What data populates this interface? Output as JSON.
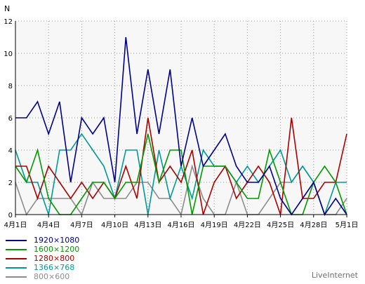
{
  "chart_data": {
    "type": "line",
    "title": "",
    "xlabel": "",
    "ylabel": "N",
    "ylim": [
      0,
      12
    ],
    "y_ticks": [
      "0",
      "2",
      "4",
      "6",
      "8",
      "10",
      "12"
    ],
    "grid": true,
    "legend_position": "bottom-left",
    "x_categories": [
      "4月1日",
      "4月2日",
      "4月3日",
      "4月4日",
      "4月5日",
      "4月6日",
      "4月7日",
      "4月8日",
      "4月9日",
      "4月10日",
      "4月11日",
      "4月12日",
      "4月13日",
      "4月14日",
      "4月15日",
      "4月16日",
      "4月17日",
      "4月18日",
      "4月19日",
      "4月20日",
      "4月21日",
      "4月22日",
      "4月23日",
      "4月24日",
      "4月25日",
      "4月26日",
      "4月27日",
      "4月28日",
      "4月29日",
      "4月30日",
      "5月1日"
    ],
    "x_ticks": [
      {
        "index": 0,
        "label": "4月1日"
      },
      {
        "index": 3,
        "label": "4月4日"
      },
      {
        "index": 6,
        "label": "4月7日"
      },
      {
        "index": 9,
        "label": "4月10日"
      },
      {
        "index": 12,
        "label": "4月13日"
      },
      {
        "index": 15,
        "label": "4月16日"
      },
      {
        "index": 18,
        "label": "4月19日"
      },
      {
        "index": 21,
        "label": "4月22日"
      },
      {
        "index": 24,
        "label": "4月25日"
      },
      {
        "index": 27,
        "label": "4月28日"
      },
      {
        "index": 30,
        "label": "5月1日"
      }
    ],
    "series": [
      {
        "name": "800×600",
        "color": "#8c8c8c",
        "values": [
          2,
          0,
          1,
          1,
          1,
          1,
          0,
          2,
          1,
          1,
          1,
          2,
          2,
          1,
          1,
          0,
          3,
          1,
          0,
          0,
          2,
          0,
          0,
          1,
          2,
          2,
          3,
          2,
          0,
          0,
          1
        ]
      },
      {
        "name": "1366×768",
        "color": "#009999",
        "values": [
          4,
          2,
          2,
          0,
          4,
          4,
          5,
          4,
          3,
          1,
          4,
          4,
          0,
          4,
          1,
          3,
          1,
          4,
          3,
          3,
          2,
          3,
          2,
          3,
          4,
          2,
          3,
          2,
          0,
          2,
          2
        ]
      },
      {
        "name": "1280×800",
        "color": "#aa0000",
        "values": [
          3,
          3,
          1,
          3,
          2,
          1,
          2,
          1,
          2,
          1,
          3,
          1,
          6,
          2,
          3,
          2,
          4,
          0,
          2,
          3,
          1,
          2,
          3,
          2,
          0,
          6,
          1,
          1,
          2,
          2,
          5
        ]
      },
      {
        "name": "1600×1200",
        "color": "#009900",
        "values": [
          3,
          2,
          4,
          1,
          0,
          0,
          1,
          2,
          2,
          1,
          2,
          2,
          5,
          2,
          4,
          4,
          0,
          3,
          3,
          3,
          2,
          1,
          1,
          4,
          2,
          0,
          0,
          2,
          3,
          2,
          0
        ]
      },
      {
        "name": "1920×1080",
        "color": "#00008b",
        "values": [
          6,
          6,
          7,
          5,
          7,
          2,
          6,
          5,
          6,
          2,
          11,
          5,
          9,
          5,
          9,
          3,
          6,
          3,
          4,
          5,
          3,
          2,
          2,
          3,
          1,
          0,
          1,
          2,
          0,
          1,
          0
        ]
      }
    ],
    "legend_order": [
      4,
      3,
      2,
      1,
      0
    ]
  },
  "branding": "LiveInternet"
}
